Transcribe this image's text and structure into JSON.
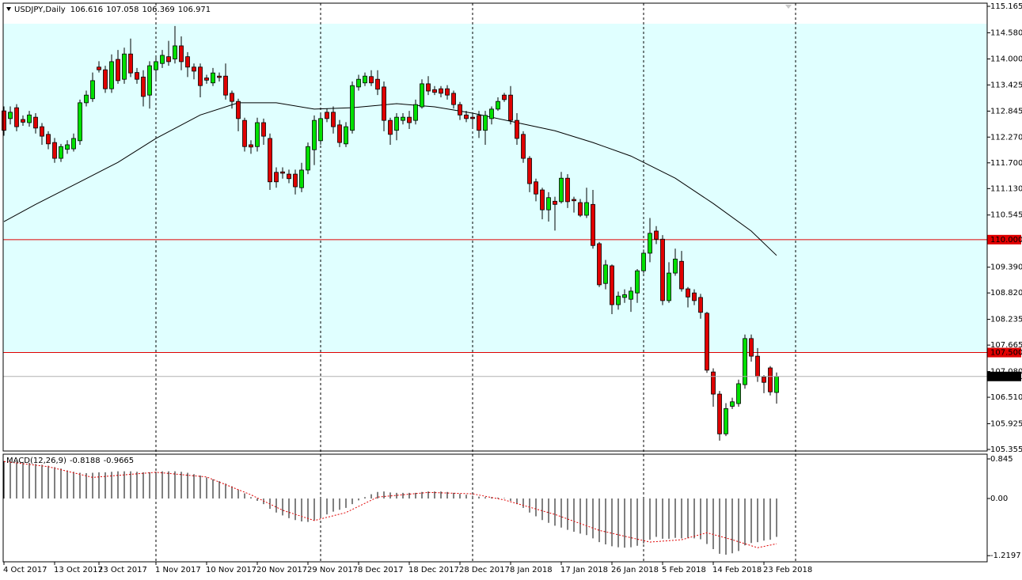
{
  "chart_data": [
    {
      "type": "candlestick",
      "symbol": "USDJPY,Daily",
      "categories": [
        "4 Oct 2017",
        null,
        null,
        null,
        null,
        null,
        null,
        null,
        "13 Oct 2017",
        null,
        null,
        null,
        null,
        null,
        null,
        "23 Oct 2017",
        null,
        null,
        null,
        null,
        null,
        null,
        null,
        null,
        "1 Nov 2017",
        null,
        null,
        null,
        null,
        null,
        null,
        null,
        "10 Nov 2017",
        null,
        null,
        null,
        null,
        null,
        null,
        null,
        "20 Nov 2017",
        null,
        null,
        null,
        null,
        null,
        null,
        null,
        "29 Nov 2017",
        null,
        null,
        null,
        null,
        null,
        null,
        null,
        "8 Dec 2017",
        null,
        null,
        null,
        null,
        null,
        null,
        null,
        "18 Dec 2017",
        null,
        null,
        null,
        null,
        null,
        null,
        null,
        "28 Dec 2017",
        null,
        null,
        null,
        null,
        null,
        null,
        null,
        "8 Jan 2018",
        null,
        null,
        null,
        null,
        null,
        null,
        null,
        "17 Jan 2018",
        null,
        null,
        null,
        null,
        null,
        null,
        null,
        "26 Jan 2018",
        null,
        null,
        null,
        null,
        null,
        null,
        null,
        "5 Feb 2018",
        null,
        null,
        null,
        null,
        null,
        null,
        null,
        "14 Feb 2018",
        null,
        null,
        null,
        null,
        null,
        null,
        null,
        "23 Feb 2018",
        null,
        null
      ],
      "open": [
        112.85,
        112.68,
        112.92,
        112.66,
        112.59,
        112.71,
        112.5,
        112.33,
        112.15,
        111.8,
        112.0,
        112.01,
        112.19,
        113.03,
        113.12,
        113.82,
        113.76,
        113.34,
        113.99,
        113.55,
        114.11,
        113.7,
        113.6,
        113.2,
        113.76,
        113.9,
        114.05,
        114.0,
        114.29,
        114.05,
        113.82,
        113.82,
        113.58,
        113.47,
        113.62,
        113.62,
        113.24,
        113.06,
        112.64,
        112.1,
        112.06,
        112.59,
        112.24,
        111.49,
        111.5,
        111.45,
        111.45,
        111.15,
        111.54,
        111.99,
        112.19,
        112.82,
        112.82,
        112.54,
        112.12,
        112.42,
        113.38,
        113.47,
        113.61,
        113.55,
        113.38,
        112.64,
        112.42,
        112.64,
        112.71,
        112.64,
        112.94,
        113.45,
        113.32,
        113.34,
        113.34,
        113.24,
        112.99,
        112.76,
        112.71,
        112.75,
        112.42,
        112.68,
        112.89,
        113.2,
        113.2,
        112.64,
        112.33,
        111.8,
        111.28,
        111.1,
        110.66,
        110.85,
        110.84,
        111.36,
        110.89,
        110.82,
        110.54,
        110.78,
        109.91,
        109.03,
        109.42,
        108.56,
        108.72,
        108.68,
        108.82,
        109.31,
        109.7,
        110.19,
        110.01,
        108.65,
        109.26,
        109.52,
        108.91,
        108.82,
        108.72,
        108.37,
        107.07,
        106.58,
        105.7,
        106.31,
        106.37,
        106.79,
        107.81,
        107.42,
        106.96,
        107.16,
        106.616
      ],
      "high": [
        112.95,
        112.95,
        113.0,
        112.75,
        112.85,
        112.8,
        112.58,
        112.4,
        112.25,
        112.12,
        112.2,
        112.35,
        113.1,
        113.3,
        113.7,
        113.95,
        113.85,
        114.1,
        114.2,
        114.25,
        114.45,
        113.8,
        113.75,
        113.95,
        114.05,
        114.2,
        114.4,
        114.73,
        114.5,
        114.15,
        113.9,
        113.9,
        113.65,
        113.8,
        113.7,
        113.9,
        113.3,
        113.12,
        112.7,
        112.2,
        112.7,
        112.68,
        112.35,
        111.6,
        111.6,
        111.55,
        111.55,
        111.7,
        112.15,
        112.75,
        112.8,
        112.9,
        112.95,
        112.65,
        112.6,
        113.5,
        113.65,
        113.7,
        113.75,
        113.75,
        113.5,
        112.7,
        112.8,
        112.8,
        112.85,
        113.1,
        113.55,
        113.62,
        113.4,
        113.4,
        113.42,
        113.3,
        113.05,
        112.85,
        112.8,
        112.85,
        112.85,
        112.95,
        113.15,
        113.25,
        113.4,
        112.8,
        112.4,
        111.85,
        111.35,
        111.15,
        111.05,
        110.95,
        111.5,
        111.45,
        110.95,
        110.9,
        111.15,
        111.1,
        109.95,
        109.55,
        109.45,
        108.85,
        108.9,
        108.95,
        109.35,
        109.78,
        110.48,
        110.3,
        110.1,
        109.5,
        109.8,
        109.75,
        108.95,
        108.9,
        108.8,
        108.4,
        107.15,
        106.65,
        106.38,
        106.5,
        106.9,
        107.9,
        107.9,
        107.6,
        107.0,
        107.2,
        107.058
      ],
      "low": [
        112.3,
        112.55,
        112.4,
        112.52,
        112.5,
        112.35,
        112.1,
        112.0,
        111.7,
        111.72,
        111.9,
        111.95,
        112.1,
        112.95,
        113.05,
        113.7,
        113.25,
        113.25,
        113.45,
        113.45,
        113.6,
        113.45,
        112.95,
        112.9,
        113.55,
        113.8,
        113.85,
        113.9,
        113.75,
        113.6,
        113.55,
        113.15,
        113.45,
        113.4,
        113.5,
        113.1,
        112.9,
        112.4,
        111.95,
        111.9,
        111.95,
        112.1,
        111.1,
        111.15,
        111.35,
        111.25,
        111.0,
        111.05,
        111.45,
        111.65,
        112.1,
        112.6,
        112.35,
        112.05,
        112.05,
        112.35,
        113.3,
        113.4,
        113.4,
        113.2,
        112.4,
        112.1,
        112.2,
        112.55,
        112.45,
        112.55,
        112.9,
        113.2,
        113.2,
        113.15,
        113.1,
        112.9,
        112.65,
        112.6,
        112.5,
        112.25,
        112.1,
        112.55,
        112.85,
        113.05,
        112.55,
        112.1,
        111.7,
        111.05,
        110.85,
        110.45,
        110.4,
        110.2,
        110.8,
        110.7,
        110.6,
        110.5,
        110.48,
        109.8,
        108.95,
        108.9,
        108.35,
        108.45,
        108.6,
        108.4,
        108.6,
        109.25,
        109.5,
        109.9,
        108.55,
        108.6,
        109.2,
        108.85,
        108.5,
        108.55,
        108.25,
        107.05,
        106.3,
        105.55,
        105.65,
        106.25,
        106.3,
        106.7,
        107.3,
        106.85,
        106.6,
        106.55,
        106.369
      ],
      "close": [
        112.42,
        112.82,
        112.5,
        112.6,
        112.76,
        112.47,
        112.29,
        112.12,
        111.8,
        112.06,
        112.1,
        112.24,
        113.03,
        113.2,
        113.52,
        113.76,
        113.34,
        113.94,
        113.52,
        114.11,
        113.69,
        113.55,
        113.17,
        113.85,
        113.94,
        114.08,
        113.94,
        114.29,
        113.94,
        113.82,
        113.73,
        113.41,
        113.53,
        113.69,
        113.59,
        113.2,
        113.06,
        112.68,
        112.06,
        112.05,
        112.59,
        112.29,
        111.28,
        111.28,
        111.47,
        111.35,
        111.17,
        111.54,
        112.06,
        112.64,
        112.68,
        112.68,
        112.5,
        112.15,
        112.5,
        113.41,
        113.55,
        113.62,
        113.47,
        113.33,
        112.64,
        112.33,
        112.71,
        112.71,
        112.59,
        112.99,
        113.45,
        113.29,
        113.26,
        113.24,
        113.2,
        112.99,
        112.76,
        112.68,
        112.68,
        112.42,
        112.75,
        112.89,
        113.06,
        113.1,
        112.64,
        112.24,
        111.8,
        111.24,
        111.01,
        110.66,
        110.93,
        110.78,
        111.36,
        110.84,
        110.86,
        110.54,
        110.82,
        109.87,
        109.0,
        109.44,
        108.56,
        108.75,
        108.78,
        108.86,
        109.31,
        109.7,
        110.14,
        110.01,
        108.65,
        109.26,
        109.57,
        108.91,
        108.73,
        108.65,
        108.39,
        107.11,
        106.58,
        105.7,
        106.26,
        106.41,
        106.81,
        107.81,
        107.42,
        106.97,
        106.84,
        106.63,
        106.971
      ],
      "up_color": "#00e000",
      "down_color": "#e00000",
      "ylim": [
        105.32,
        115.235
      ],
      "yticks": [
        115.165,
        {
          "value": 114.58,
          "label": "114.580"
        },
        {
          "value": 114,
          "label": "114.000"
        },
        113.425,
        112.845,
        {
          "value": 112.27,
          "label": "112.270"
        },
        {
          "value": 111.7,
          "label": "111.700"
        },
        {
          "value": 111.13,
          "label": "111.130"
        },
        110.545,
        {
          "value": 109.39,
          "label": "109.390"
        },
        {
          "value": 108.82,
          "label": "108.820"
        },
        108.235,
        107.665,
        {
          "value": 107.08,
          "label": "107.080"
        },
        {
          "value": 106.51,
          "label": "106.510"
        },
        105.925,
        105.355
      ],
      "zone": {
        "range": [
          107.5,
          114.78
        ],
        "color": "#e0ffff"
      },
      "lines": [
        {
          "value": 110,
          "label": "110.000",
          "color": "#e00000"
        },
        {
          "value": 107.5,
          "label": "107.500",
          "color": "#e00000"
        }
      ],
      "ma": {
        "color": "#000000",
        "x": [
          0,
          5,
          12,
          18,
          24,
          31,
          37,
          43,
          49,
          55,
          62,
          68,
          74,
          81,
          87,
          93,
          99,
          106,
          112,
          118,
          122
        ],
        "values": [
          110.4,
          110.78,
          111.28,
          111.71,
          112.24,
          112.76,
          113.03,
          113.03,
          112.89,
          112.92,
          113.01,
          112.94,
          112.8,
          112.59,
          112.41,
          112.15,
          111.85,
          111.36,
          110.8,
          110.19,
          109.65
        ]
      }
    },
    {
      "type": "bar",
      "title": "MACD(12,26,9)",
      "color": "#000000",
      "values": [
        0.8,
        0.79,
        0.78,
        0.77,
        0.76,
        0.74,
        0.72,
        0.7,
        0.67,
        0.64,
        0.6,
        0.57,
        0.55,
        0.54,
        0.55,
        0.56,
        0.56,
        0.57,
        0.58,
        0.58,
        0.58,
        0.57,
        0.56,
        0.56,
        0.57,
        0.58,
        0.58,
        0.58,
        0.57,
        0.55,
        0.52,
        0.49,
        0.45,
        0.41,
        0.37,
        0.32,
        0.26,
        0.19,
        0.11,
        0.03,
        -0.05,
        -0.12,
        -0.22,
        -0.3,
        -0.36,
        -0.42,
        -0.46,
        -0.49,
        -0.5,
        -0.47,
        -0.41,
        -0.34,
        -0.28,
        -0.24,
        -0.2,
        -0.12,
        -0.04,
        0.03,
        0.09,
        0.14,
        0.15,
        0.13,
        0.12,
        0.12,
        0.12,
        0.12,
        0.14,
        0.15,
        0.15,
        0.15,
        0.14,
        0.12,
        0.1,
        0.08,
        0.06,
        0.04,
        0.03,
        0.03,
        0.02,
        0.01,
        -0.05,
        -0.12,
        -0.2,
        -0.3,
        -0.38,
        -0.46,
        -0.52,
        -0.58,
        -0.62,
        -0.67,
        -0.71,
        -0.75,
        -0.78,
        -0.85,
        -0.93,
        -0.98,
        -1.02,
        -1.04,
        -1.05,
        -1.04,
        -1.01,
        -0.96,
        -0.88,
        -0.82,
        -0.86,
        -0.86,
        -0.84,
        -0.85,
        -0.84,
        -0.85,
        -0.87,
        -0.97,
        -1.08,
        -1.18,
        -1.2,
        -1.17,
        -1.12,
        -1.0,
        -0.95,
        -0.93,
        -0.9,
        -0.88,
        -0.8188
      ],
      "signal": {
        "color": "#e00000",
        "x": [
          0,
          7,
          14,
          24,
          32,
          39,
          44,
          49,
          54,
          59,
          67,
          74,
          79,
          87,
          94,
          102,
          107,
          111,
          115,
          119,
          122
        ],
        "values": [
          0.79,
          0.68,
          0.45,
          0.56,
          0.46,
          0.08,
          -0.25,
          -0.47,
          -0.3,
          0.03,
          0.13,
          0.1,
          -0.03,
          -0.34,
          -0.68,
          -0.93,
          -0.88,
          -0.73,
          -0.88,
          -1.05,
          -0.9665
        ]
      },
      "ylim": [
        -1.351,
        0.946
      ],
      "yticks": [
        0.845,
        {
          "value": 0,
          "label": "0.00"
        },
        -1.2197
      ]
    }
  ]
}
